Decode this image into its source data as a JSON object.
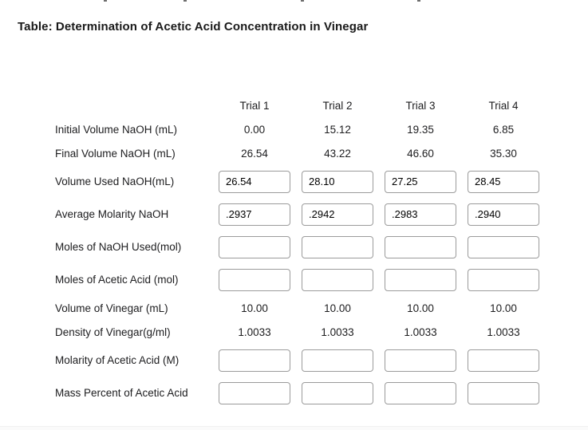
{
  "page": {
    "title": "Table: Determination of Acetic Acid Concentration in Vinegar"
  },
  "top_cutoff_fragments_x": [
    130,
    230,
    377,
    523
  ],
  "table": {
    "column_headers": [
      "Trial 1",
      "Trial 2",
      "Trial 3",
      "Trial 4"
    ],
    "rows": [
      {
        "label": "Initial Volume NaOH (mL)",
        "type": "text",
        "values": [
          "0.00",
          "15.12",
          "19.35",
          "6.85"
        ]
      },
      {
        "label": "Final Volume NaOH (mL)",
        "type": "text",
        "values": [
          "26.54",
          "43.22",
          "46.60",
          "35.30"
        ]
      },
      {
        "label": "Volume Used NaOH(mL)",
        "type": "input",
        "values": [
          "26.54",
          "28.10",
          "27.25",
          "28.45"
        ]
      },
      {
        "label": "Average Molarity NaOH",
        "type": "input",
        "values": [
          ".2937",
          ".2942",
          ".2983",
          ".2940"
        ]
      },
      {
        "label": "Moles of NaOH Used(mol)",
        "type": "input",
        "values": [
          "",
          "",
          "",
          ""
        ]
      },
      {
        "label": "Moles of Acetic Acid (mol)",
        "type": "input",
        "values": [
          "",
          "",
          "",
          ""
        ]
      },
      {
        "label": "Volume of Vinegar (mL)",
        "type": "text",
        "values": [
          "10.00",
          "10.00",
          "10.00",
          "10.00"
        ]
      },
      {
        "label": "Density of Vinegar(g/ml)",
        "type": "text",
        "values": [
          "1.0033",
          "1.0033",
          "1.0033",
          "1.0033"
        ]
      },
      {
        "label": "Molarity of Acetic Acid (M)",
        "type": "input",
        "values": [
          "",
          "",
          "",
          ""
        ]
      },
      {
        "label": "Mass Percent of Acetic Acid",
        "type": "input",
        "values": [
          "",
          "",
          "",
          ""
        ]
      }
    ]
  },
  "colors": {
    "input_border": "#9b9b9b",
    "text": "#1d1d1f",
    "footer_band": "#fafafa"
  }
}
